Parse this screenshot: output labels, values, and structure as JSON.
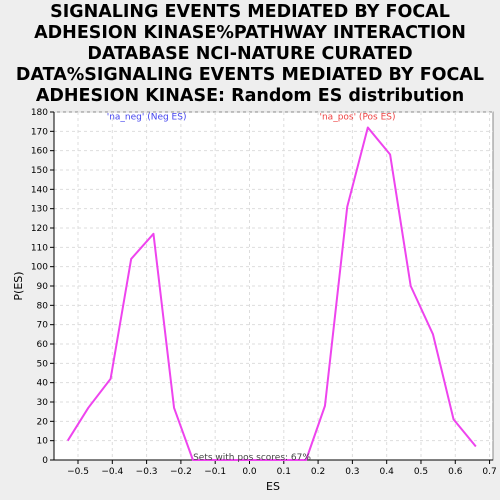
{
  "chart_data": {
    "type": "line",
    "title": "SIGNALING EVENTS MEDIATED BY FOCAL ADHESION KINASE%PATHWAY INTERACTION DATABASE NCI-NATURE CURATED DATA%SIGNALING EVENTS MEDIATED BY FOCAL ADHESION KINASE: Random ES distribution",
    "xlabel": "ES",
    "ylabel": "P(ES)",
    "xlim": [
      -0.57,
      0.71
    ],
    "ylim": [
      0,
      180
    ],
    "x_ticks": [
      -0.5,
      -0.4,
      -0.3,
      -0.2,
      -0.1,
      0.0,
      0.1,
      0.2,
      0.3,
      0.4,
      0.5,
      0.6,
      0.7
    ],
    "x_tick_labels": [
      "−0.5",
      "−0.4",
      "−0.3",
      "−0.2",
      "−0.1",
      "0.0",
      "0.1",
      "0.2",
      "0.3",
      "0.4",
      "0.5",
      "0.6",
      "0.7"
    ],
    "y_ticks": [
      0,
      10,
      20,
      30,
      40,
      50,
      60,
      70,
      80,
      90,
      100,
      110,
      120,
      130,
      140,
      150,
      160,
      170,
      180
    ],
    "grid": true,
    "line_color": "#ee44ee",
    "series": [
      {
        "x": [
          -0.53,
          -0.47,
          -0.405,
          -0.345,
          -0.28,
          -0.22,
          -0.165,
          -0.1,
          0.0,
          0.1,
          0.165,
          0.22,
          0.285,
          0.345,
          0.41,
          0.47,
          0.535,
          0.595,
          0.66
        ],
        "values": [
          10,
          27,
          42,
          104,
          117,
          27,
          0,
          0,
          0,
          0,
          0,
          28,
          131,
          172,
          158,
          90,
          65,
          21,
          7
        ]
      }
    ],
    "annotations": [
      {
        "text": "'na_neg' (Neg ES)",
        "x": -0.3,
        "y": 176,
        "color": "#4444ee"
      },
      {
        "text": "'na_pos' (Pos ES)",
        "x": 0.315,
        "y": 176,
        "color": "#ee4444"
      }
    ],
    "footer": "Sets with pos scores: 67%"
  }
}
